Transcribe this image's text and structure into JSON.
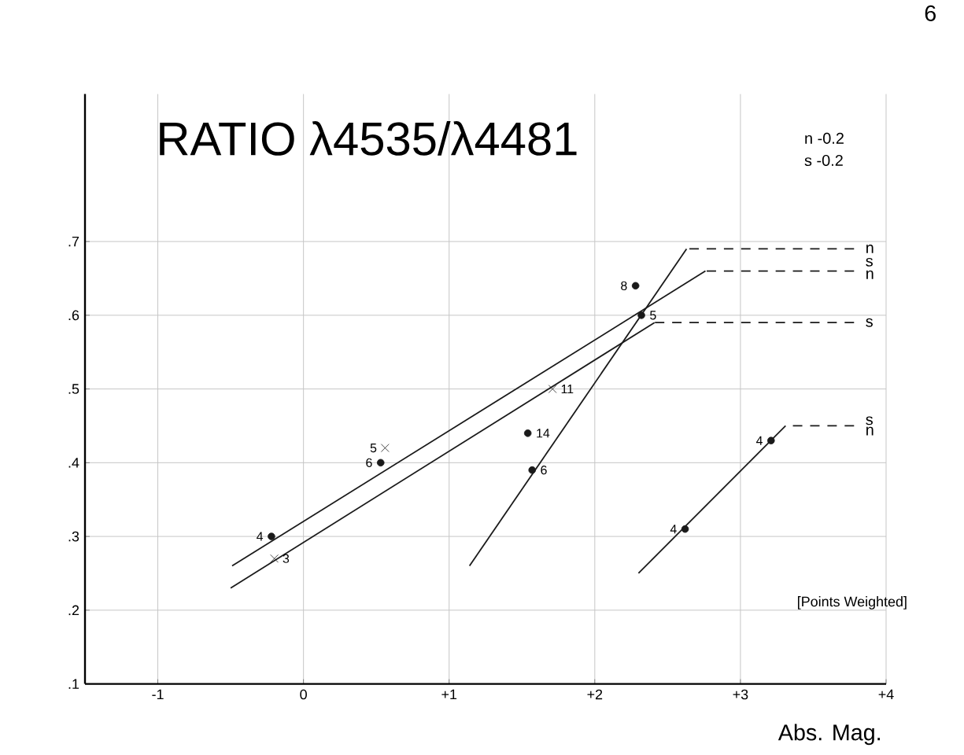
{
  "chart_data": {
    "type": "scatter",
    "title": "RATIO λ4535/λ4481",
    "xlabel": "Abs. Mag.",
    "xlim": [
      -1.5,
      4.0
    ],
    "ylim": [
      0.1,
      0.9
    ],
    "xticks": [
      {
        "value": -1,
        "label": "-1"
      },
      0,
      {
        "value": 1,
        "label": "+1"
      },
      {
        "value": 2,
        "label": "+2"
      },
      {
        "value": 3,
        "label": "+3"
      },
      {
        "value": 4,
        "label": "+4"
      }
    ],
    "yticks": [
      {
        "value": 0.1,
        "label": ".1"
      },
      {
        "value": 0.2,
        "label": ".2"
      },
      {
        "value": 0.3,
        "label": ".3"
      },
      {
        "value": 0.4,
        "label": ".4"
      },
      {
        "value": 0.5,
        "label": ".5"
      },
      {
        "value": 0.6,
        "label": ".6"
      },
      {
        "value": 0.7,
        "label": ".7"
      }
    ],
    "grid": true,
    "series": [
      {
        "marker": "circle",
        "color": "#1a1a1a",
        "x": [
          -0.22,
          0.53,
          1.54,
          2.28,
          2.62,
          3.21
        ],
        "values": [
          0.3,
          0.4,
          0.44,
          0.64,
          0.31,
          0.43
        ]
      },
      {
        "marker": "cross",
        "color": "#1a1a1a",
        "x": [
          -0.2,
          0.56,
          1.71
        ],
        "values": [
          0.27,
          0.42,
          0.5
        ]
      },
      {
        "marker": "circle",
        "color": "#1a1a1a",
        "x": [
          1.57,
          2.32
        ],
        "values": [
          0.39,
          0.6
        ]
      },
      {
        "type": "line",
        "line_style": "solid",
        "color": "#1a1a1a",
        "x": [
          -0.49,
          2.76
        ],
        "values": [
          0.26,
          0.66
        ]
      },
      {
        "type": "line",
        "line_style": "solid",
        "color": "#1a1a1a",
        "x": [
          -0.5,
          2.41
        ],
        "values": [
          0.23,
          0.59
        ]
      },
      {
        "type": "line",
        "line_style": "solid",
        "color": "#1a1a1a",
        "x": [
          1.14,
          2.63
        ],
        "values": [
          0.26,
          0.69
        ]
      },
      {
        "type": "line",
        "line_style": "solid",
        "color": "#1a1a1a",
        "x": [
          2.3,
          3.31
        ],
        "values": [
          0.25,
          0.45
        ]
      },
      {
        "type": "line",
        "line_style": "dashed",
        "color": "#1a1a1a",
        "x": [
          2.76,
          3.78
        ],
        "values": [
          0.66,
          0.66
        ]
      },
      {
        "type": "line",
        "line_style": "dashed",
        "color": "#1a1a1a",
        "x": [
          2.41,
          3.78
        ],
        "values": [
          0.59,
          0.59
        ]
      },
      {
        "type": "line",
        "line_style": "dashed",
        "color": "#1a1a1a",
        "x": [
          2.63,
          3.78
        ],
        "values": [
          0.69,
          0.69
        ]
      },
      {
        "type": "line",
        "line_style": "dashed",
        "color": "#1a1a1a",
        "x": [
          3.31,
          3.78
        ],
        "values": [
          0.45,
          0.45
        ]
      }
    ],
    "annotations": [
      "6",
      "n -0.2",
      "s -0.2",
      "[Points Weighted]",
      {
        "text": "4",
        "x": -0.22,
        "y": 0.3
      },
      {
        "text": "3",
        "x": -0.2,
        "y": 0.27
      },
      {
        "text": "5",
        "x": 0.56,
        "y": 0.42
      },
      {
        "text": "6",
        "x": 0.53,
        "y": 0.4
      },
      {
        "text": "14",
        "x": 1.54,
        "y": 0.44
      },
      {
        "text": "6",
        "x": 1.57,
        "y": 0.39
      },
      {
        "text": "11",
        "x": 1.71,
        "y": 0.5
      },
      {
        "text": "8",
        "x": 2.28,
        "y": 0.64
      },
      {
        "text": "5",
        "x": 2.32,
        "y": 0.6
      },
      {
        "text": "4",
        "x": 2.62,
        "y": 0.31
      },
      {
        "text": "4",
        "x": 3.21,
        "y": 0.43
      },
      "n",
      "s",
      "n",
      "s",
      "s",
      "n"
    ]
  }
}
